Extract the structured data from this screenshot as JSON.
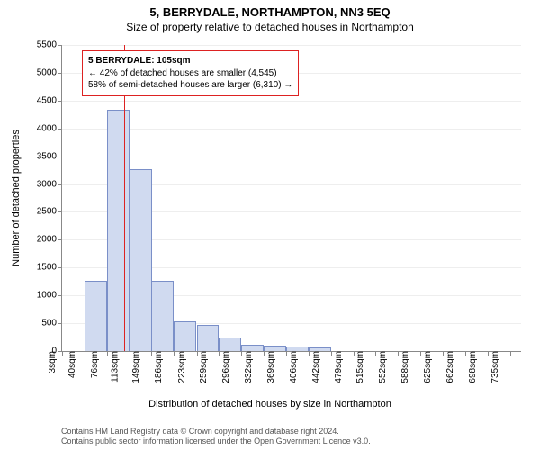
{
  "title": "5, BERRYDALE, NORTHAMPTON, NN3 5EQ",
  "subtitle": "Size of property relative to detached houses in Northampton",
  "y_axis_label": "Number of detached properties",
  "x_axis_label": "Distribution of detached houses by size in Northampton",
  "chart": {
    "type": "histogram",
    "bar_fill": "#d0daf0",
    "bar_stroke": "#7a8fc8",
    "grid_color": "#eeeeee",
    "axis_color": "#888888",
    "background": "#ffffff",
    "reference_line_color": "#dd2222",
    "reference_x_value": 105,
    "y_max": 5500,
    "y_tick_step": 500,
    "x_min": 3,
    "x_max": 753,
    "x_ticks": [
      3,
      40,
      76,
      113,
      149,
      186,
      223,
      259,
      296,
      332,
      369,
      406,
      442,
      479,
      515,
      552,
      588,
      625,
      662,
      698,
      735
    ],
    "x_tick_suffix": "sqm",
    "bin_width": 36.6,
    "bars": [
      {
        "x": 3,
        "count": 0
      },
      {
        "x": 40,
        "count": 1260
      },
      {
        "x": 76,
        "count": 4330
      },
      {
        "x": 113,
        "count": 3270
      },
      {
        "x": 149,
        "count": 1260
      },
      {
        "x": 186,
        "count": 540
      },
      {
        "x": 223,
        "count": 470
      },
      {
        "x": 259,
        "count": 250
      },
      {
        "x": 296,
        "count": 120
      },
      {
        "x": 332,
        "count": 100
      },
      {
        "x": 369,
        "count": 80
      },
      {
        "x": 406,
        "count": 60
      },
      {
        "x": 442,
        "count": 0
      },
      {
        "x": 479,
        "count": 0
      },
      {
        "x": 515,
        "count": 0
      },
      {
        "x": 552,
        "count": 0
      },
      {
        "x": 588,
        "count": 0
      },
      {
        "x": 625,
        "count": 0
      },
      {
        "x": 662,
        "count": 0
      },
      {
        "x": 698,
        "count": 0
      }
    ]
  },
  "callout": {
    "line1": "5 BERRYDALE: 105sqm",
    "line2": "← 42% of detached houses are smaller (4,545)",
    "line3": "58% of semi-detached houses are larger (6,310) →"
  },
  "footer": {
    "line1": "Contains HM Land Registry data © Crown copyright and database right 2024.",
    "line2": "Contains public sector information licensed under the Open Government Licence v3.0."
  }
}
